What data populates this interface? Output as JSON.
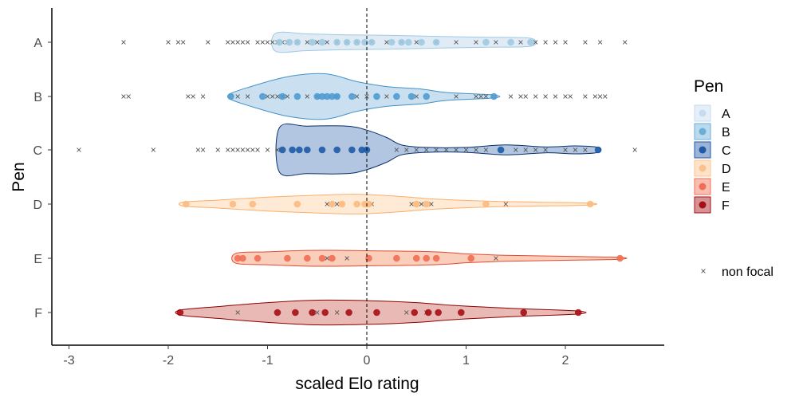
{
  "chart_data": {
    "type": "scatter",
    "subtype": "violin-with-points",
    "xlabel": "scaled Elo rating",
    "ylabel": "Pen",
    "xlim": [
      -3.2,
      3.0
    ],
    "xticks": [
      -3,
      -2,
      -1,
      0,
      1,
      2
    ],
    "xtick_labels": [
      "-3",
      "-2",
      "-1",
      "0",
      "1",
      "2"
    ],
    "categories": [
      "A",
      "B",
      "C",
      "D",
      "E",
      "F"
    ],
    "reference_line": {
      "x": 0,
      "style": "dashed"
    },
    "legend": {
      "title": "Pen",
      "position": "right",
      "entries": [
        {
          "label": "A",
          "color": "#c6dbef"
        },
        {
          "label": "B",
          "color": "#6baed6"
        },
        {
          "label": "C",
          "color": "#2158a8"
        },
        {
          "label": "D",
          "color": "#fdc08c"
        },
        {
          "label": "E",
          "color": "#ef6f55"
        },
        {
          "label": "F",
          "color": "#a50f15"
        }
      ],
      "nonfocal_label": "non focal"
    },
    "series": [
      {
        "name": "A",
        "fill": "#c6dbef",
        "fill_opacity": 0.55,
        "stroke": "#9ecae1",
        "point_color": "#9ecae1",
        "violin": [
          [
            -0.92,
            0.18
          ],
          [
            -0.6,
            0.17
          ],
          [
            -0.2,
            0.15
          ],
          [
            0.2,
            0.14
          ],
          [
            0.7,
            0.12
          ],
          [
            1.2,
            0.1
          ],
          [
            1.65,
            0.08
          ]
        ],
        "focal": [
          -0.88,
          -0.78,
          -0.7,
          -0.55,
          -0.45,
          -0.3,
          -0.2,
          -0.1,
          -0.02,
          0.05,
          0.25,
          0.35,
          0.42,
          0.55,
          0.7,
          1.2,
          1.45,
          1.65
        ],
        "nonfocal": [
          -2.45,
          -2.0,
          -1.9,
          -1.85,
          -1.6,
          -1.4,
          -1.35,
          -1.3,
          -1.25,
          -1.2,
          -1.1,
          -1.05,
          -1.0,
          -0.95,
          -0.9,
          -0.85,
          -0.8,
          -0.7,
          -0.6,
          -0.5,
          -0.4,
          -0.3,
          -0.2,
          -0.1,
          0.05,
          0.2,
          0.35,
          0.5,
          0.7,
          0.9,
          1.1,
          1.3,
          1.55,
          1.7,
          1.8,
          1.9,
          2.0,
          2.2,
          2.35,
          2.6
        ]
      },
      {
        "name": "B",
        "fill": "#a6cbe6",
        "fill_opacity": 0.6,
        "stroke": "#4292c6",
        "point_color": "#4f9bd1",
        "violin": [
          [
            -1.38,
            0.05
          ],
          [
            -1.2,
            0.18
          ],
          [
            -0.8,
            0.4
          ],
          [
            -0.42,
            0.46
          ],
          [
            -0.1,
            0.3
          ],
          [
            0.2,
            0.2
          ],
          [
            0.55,
            0.15
          ],
          [
            0.8,
            0.08
          ],
          [
            1.28,
            0.03
          ]
        ],
        "focal": [
          -1.37,
          -1.05,
          -0.85,
          -0.7,
          -0.5,
          -0.45,
          -0.4,
          -0.35,
          -0.3,
          -0.15,
          0.1,
          0.3,
          0.45,
          0.6,
          1.28
        ],
        "nonfocal": [
          -2.45,
          -2.4,
          -1.8,
          -1.75,
          -1.65,
          -1.3,
          -1.2,
          -1.0,
          -0.95,
          -0.9,
          -0.85,
          -0.8,
          -0.6,
          -0.5,
          -0.3,
          -0.1,
          0.0,
          0.2,
          0.5,
          0.9,
          1.1,
          1.15,
          1.2,
          1.45,
          1.55,
          1.6,
          1.7,
          1.8,
          1.9,
          2.0,
          2.05,
          2.2,
          2.3,
          2.35,
          2.4
        ]
      },
      {
        "name": "C",
        "fill": "#2158a8",
        "fill_opacity": 0.35,
        "stroke": "#08306b",
        "point_color": "#1d5aa6",
        "violin": [
          [
            -0.88,
            0.45
          ],
          [
            -0.6,
            0.48
          ],
          [
            -0.2,
            0.48
          ],
          [
            0.0,
            0.4
          ],
          [
            0.2,
            0.25
          ],
          [
            0.35,
            0.1
          ],
          [
            0.6,
            0.05
          ],
          [
            1.0,
            0.05
          ],
          [
            1.4,
            0.1
          ],
          [
            1.8,
            0.06
          ],
          [
            2.1,
            0.08
          ],
          [
            2.33,
            0.05
          ]
        ],
        "focal": [
          -0.85,
          -0.75,
          -0.68,
          -0.6,
          -0.45,
          -0.3,
          -0.15,
          -0.05,
          0.0,
          1.35,
          2.33
        ],
        "nonfocal": [
          -2.9,
          -2.15,
          -1.7,
          -1.65,
          -1.5,
          -1.4,
          -1.35,
          -1.3,
          -1.25,
          -1.2,
          -1.15,
          -1.1,
          -1.0,
          -0.9,
          0.3,
          0.4,
          0.5,
          0.6,
          0.7,
          0.8,
          0.9,
          1.0,
          1.1,
          1.2,
          1.5,
          1.6,
          1.7,
          1.8,
          2.0,
          2.1,
          2.2,
          2.7
        ]
      },
      {
        "name": "D",
        "fill": "#fdd0a2",
        "fill_opacity": 0.45,
        "stroke": "#fdae6b",
        "point_color": "#fdba80",
        "violin": [
          [
            -1.85,
            0.04
          ],
          [
            -1.5,
            0.08
          ],
          [
            -1.0,
            0.14
          ],
          [
            -0.5,
            0.18
          ],
          [
            -0.1,
            0.2
          ],
          [
            0.3,
            0.16
          ],
          [
            0.7,
            0.1
          ],
          [
            1.2,
            0.06
          ],
          [
            1.7,
            0.04
          ],
          [
            2.25,
            0.02
          ]
        ],
        "focal": [
          -1.82,
          -1.35,
          -1.15,
          -0.7,
          -0.35,
          -0.25,
          -0.1,
          -0.02,
          0.02,
          0.5,
          0.6,
          1.2,
          2.25
        ],
        "nonfocal": [
          -0.4,
          -0.3,
          0.05,
          0.45,
          0.55,
          0.65,
          1.4
        ]
      },
      {
        "name": "E",
        "fill": "#f4a582",
        "fill_opacity": 0.55,
        "stroke": "#e34a33",
        "point_color": "#ef6f55",
        "violin": [
          [
            -1.32,
            0.1
          ],
          [
            -1.0,
            0.13
          ],
          [
            -0.6,
            0.16
          ],
          [
            -0.25,
            0.16
          ],
          [
            0.1,
            0.15
          ],
          [
            0.5,
            0.14
          ],
          [
            0.8,
            0.12
          ],
          [
            1.0,
            0.09
          ],
          [
            1.4,
            0.06
          ],
          [
            2.0,
            0.04
          ],
          [
            2.55,
            0.02
          ]
        ],
        "focal": [
          -1.3,
          -1.25,
          -1.1,
          -0.8,
          -0.6,
          -0.45,
          -0.35,
          0.02,
          0.3,
          0.5,
          0.6,
          0.7,
          1.05,
          2.55
        ],
        "nonfocal": [
          -0.4,
          -0.2,
          1.3
        ]
      },
      {
        "name": "F",
        "fill": "#c0392b",
        "fill_opacity": 0.35,
        "stroke": "#8b0000",
        "point_color": "#a50f15",
        "violin": [
          [
            -1.88,
            0.05
          ],
          [
            -1.5,
            0.12
          ],
          [
            -1.0,
            0.2
          ],
          [
            -0.5,
            0.25
          ],
          [
            0.0,
            0.24
          ],
          [
            0.5,
            0.2
          ],
          [
            0.9,
            0.14
          ],
          [
            1.5,
            0.08
          ],
          [
            2.13,
            0.03
          ]
        ],
        "focal": [
          -1.88,
          -0.9,
          -0.72,
          -0.55,
          -0.42,
          -0.18,
          0.1,
          0.48,
          0.62,
          0.72,
          0.95,
          1.58,
          2.13
        ],
        "nonfocal": [
          -1.3,
          -0.5,
          -0.3,
          0.4,
          0.6
        ]
      }
    ]
  }
}
